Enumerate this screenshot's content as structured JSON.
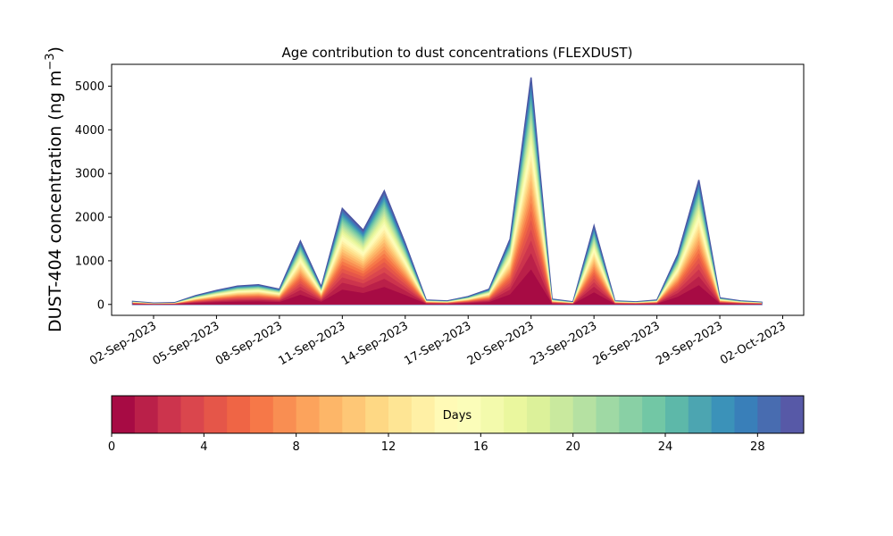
{
  "chart_data": {
    "type": "area",
    "stacked": true,
    "title": "Age contribution to dust concentrations (FLEXDUST)",
    "ylabel_main": "DUST-404 concentration (ng m",
    "ylabel_sup": "−3",
    "ylabel_close": ")",
    "xlabel": "",
    "x_axis_type": "date",
    "xlim": [
      "2023-08-31",
      "2023-10-03"
    ],
    "ylim": [
      -250,
      5500
    ],
    "xticks": [
      "02-Sep-2023",
      "05-Sep-2023",
      "08-Sep-2023",
      "11-Sep-2023",
      "14-Sep-2023",
      "17-Sep-2023",
      "20-Sep-2023",
      "23-Sep-2023",
      "26-Sep-2023",
      "29-Sep-2023",
      "02-Oct-2023"
    ],
    "xtick_dates": [
      "2023-09-02",
      "2023-09-05",
      "2023-09-08",
      "2023-09-11",
      "2023-09-14",
      "2023-09-17",
      "2023-09-20",
      "2023-09-23",
      "2023-09-26",
      "2023-09-29",
      "2023-10-02"
    ],
    "yticks": [
      0,
      1000,
      2000,
      3000,
      4000,
      5000
    ],
    "total_series": {
      "x": [
        "2023-09-01",
        "2023-09-02",
        "2023-09-03",
        "2023-09-04",
        "2023-09-05",
        "2023-09-06",
        "2023-09-07",
        "2023-09-08",
        "2023-09-09",
        "2023-09-10",
        "2023-09-11",
        "2023-09-12",
        "2023-09-13",
        "2023-09-14",
        "2023-09-15",
        "2023-09-16",
        "2023-09-17",
        "2023-09-18",
        "2023-09-19",
        "2023-09-20",
        "2023-09-21",
        "2023-09-22",
        "2023-09-23",
        "2023-09-24",
        "2023-09-25",
        "2023-09-26",
        "2023-09-27",
        "2023-09-28",
        "2023-09-29",
        "2023-09-30",
        "2023-10-01"
      ],
      "y": [
        70,
        30,
        40,
        200,
        320,
        420,
        450,
        350,
        1450,
        400,
        2200,
        1700,
        2600,
        1400,
        100,
        80,
        180,
        350,
        1500,
        5200,
        120,
        60,
        1800,
        80,
        60,
        100,
        1150,
        2850,
        150,
        80,
        50
      ]
    },
    "colorbar": {
      "label": "Days",
      "range": [
        0,
        30
      ],
      "ticks": [
        0,
        4,
        8,
        12,
        16,
        20,
        24,
        28
      ],
      "bins": 30,
      "colormap": "Spectral"
    },
    "grid": false,
    "legend": "colorbar-bottom"
  }
}
